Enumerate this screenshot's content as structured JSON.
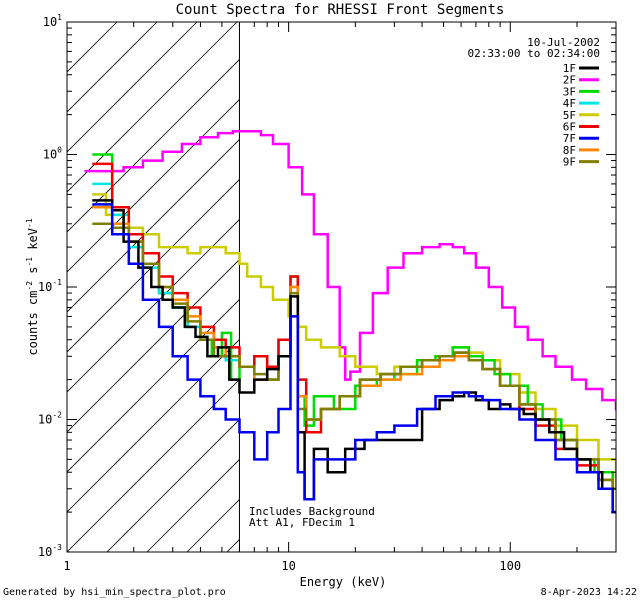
{
  "chart_data": {
    "type": "line",
    "title": "Count Spectra for RHESSI Front Segments",
    "xlabel": "Energy (keV)",
    "ylabel_main": "counts cm",
    "ylabel_exp1": "-2",
    "ylabel_mid": " s",
    "ylabel_exp2": "-1",
    "ylabel_end": " keV",
    "ylabel_exp3": "-1",
    "xscale": "log",
    "yscale": "log",
    "xlim": [
      1,
      300
    ],
    "ylim": [
      0.001,
      10
    ],
    "xticks": [
      {
        "value": 1,
        "label": "1"
      },
      {
        "value": 10,
        "label": "10"
      },
      {
        "value": 100,
        "label": "100"
      }
    ],
    "yticks": [
      {
        "value": 0.001,
        "base": "10",
        "exp": "-3"
      },
      {
        "value": 0.01,
        "base": "10",
        "exp": "-2"
      },
      {
        "value": 0.1,
        "base": "10",
        "exp": "-1"
      },
      {
        "value": 1,
        "base": "10",
        "exp": "0"
      },
      {
        "value": 10,
        "base": "10",
        "exp": "1"
      }
    ],
    "hatch_region_keV": [
      1,
      6
    ],
    "date": "10-Jul-2002",
    "time_range": "02:33:00 to 02:34:00",
    "annotation_line1": "Includes Background",
    "annotation_line2": "Att A1, FDecim 1",
    "legend_position": "top-right",
    "series": [
      {
        "name": "1F",
        "color": "#000000",
        "x": [
          1.3,
          1.6,
          1.8,
          2.1,
          2.4,
          2.7,
          3.0,
          3.4,
          3.8,
          4.3,
          4.8,
          5.4,
          6.0,
          7.0,
          8.0,
          9.0,
          10.2,
          11.0,
          11.8,
          13.0,
          15.0,
          18.0,
          22.0,
          27.0,
          33.0,
          40.0,
          48.0,
          55.0,
          62.0,
          70.0,
          80.0,
          90.0,
          100.0,
          115.0,
          130.0,
          150.0,
          175.0,
          200.0,
          230.0,
          260.0,
          290.0
        ],
        "y": [
          0.45,
          0.38,
          0.22,
          0.14,
          0.1,
          0.08,
          0.07,
          0.05,
          0.042,
          0.03,
          0.035,
          0.02,
          0.016,
          0.02,
          0.024,
          0.03,
          0.085,
          0.008,
          0.0025,
          0.006,
          0.004,
          0.006,
          0.007,
          0.007,
          0.007,
          0.012,
          0.014,
          0.015,
          0.016,
          0.014,
          0.012,
          0.013,
          0.012,
          0.011,
          0.01,
          0.008,
          0.006,
          0.005,
          0.004,
          0.003,
          0.002
        ]
      },
      {
        "name": "2F",
        "color": "#ff00ff",
        "x": [
          1.2,
          1.5,
          1.8,
          2.2,
          2.7,
          3.3,
          4.0,
          4.8,
          5.6,
          6.5,
          7.5,
          8.5,
          10.0,
          11.5,
          13.0,
          15.0,
          17.0,
          18.0,
          19.0,
          21.0,
          24.0,
          28.0,
          33.0,
          40.0,
          48.0,
          55.0,
          62.0,
          70.0,
          80.0,
          92.0,
          105.0,
          120.0,
          140.0,
          160.0,
          190.0,
          220.0,
          260.0,
          300.0
        ],
        "y": [
          0.75,
          0.75,
          0.8,
          0.9,
          1.05,
          1.2,
          1.35,
          1.45,
          1.5,
          1.5,
          1.4,
          1.2,
          0.8,
          0.5,
          0.25,
          0.1,
          0.035,
          0.02,
          0.023,
          0.045,
          0.09,
          0.14,
          0.18,
          0.2,
          0.21,
          0.2,
          0.18,
          0.14,
          0.1,
          0.07,
          0.05,
          0.04,
          0.03,
          0.025,
          0.02,
          0.017,
          0.014,
          0.012
        ]
      },
      {
        "name": "3F",
        "color": "#00dd00",
        "x": [
          1.3,
          1.6,
          1.9,
          2.2,
          2.6,
          3.0,
          3.5,
          4.0,
          4.5,
          5.0,
          5.5,
          6.0,
          7.0,
          8.0,
          9.0,
          10.2,
          11.0,
          11.8,
          13.0,
          16.0,
          20.0,
          25.0,
          30.0,
          38.0,
          46.0,
          55.0,
          65.0,
          75.0,
          85.0,
          100.0,
          120.0,
          140.0,
          170.0,
          200.0,
          240.0,
          290.0
        ],
        "y": [
          1.0,
          0.4,
          0.25,
          0.15,
          0.09,
          0.07,
          0.05,
          0.04,
          0.03,
          0.045,
          0.02,
          0.025,
          0.03,
          0.02,
          0.04,
          0.12,
          0.015,
          0.009,
          0.015,
          0.012,
          0.018,
          0.02,
          0.022,
          0.028,
          0.03,
          0.035,
          0.03,
          0.028,
          0.022,
          0.018,
          0.013,
          0.01,
          0.007,
          0.005,
          0.004,
          0.003
        ]
      },
      {
        "name": "4F",
        "color": "#00e5e5",
        "x": [
          1.3,
          1.6,
          1.9,
          2.2,
          2.6,
          3.0,
          3.5,
          4.0,
          4.6,
          5.2,
          6.0,
          7.0,
          8.0,
          9.0,
          10.2,
          11.0,
          12.0,
          14.0,
          17.0,
          21.0,
          26.0,
          32.0,
          40.0,
          48.0,
          56.0,
          65.0,
          75.0,
          90.0,
          110.0,
          130.0,
          160.0,
          200.0,
          250.0,
          290.0
        ],
        "y": [
          0.6,
          0.35,
          0.2,
          0.14,
          0.09,
          0.07,
          0.05,
          0.04,
          0.03,
          0.028,
          0.025,
          0.03,
          0.02,
          0.03,
          0.1,
          0.02,
          0.01,
          0.012,
          0.015,
          0.02,
          0.022,
          0.025,
          0.028,
          0.03,
          0.032,
          0.028,
          0.024,
          0.018,
          0.013,
          0.01,
          0.007,
          0.005,
          0.0035,
          0.003
        ]
      },
      {
        "name": "5F",
        "color": "#cccc00",
        "x": [
          1.3,
          1.5,
          1.8,
          2.2,
          2.6,
          3.0,
          3.5,
          4.0,
          4.6,
          5.2,
          6.0,
          6.5,
          7.5,
          8.5,
          10.0,
          11.0,
          12.0,
          14.0,
          17.0,
          20.0,
          25.0,
          30.0,
          38.0,
          46.0,
          55.0,
          65.0,
          75.0,
          90.0,
          110.0,
          130.0,
          160.0,
          200.0,
          250.0,
          300.0
        ],
        "y": [
          0.5,
          0.35,
          0.28,
          0.25,
          0.2,
          0.2,
          0.18,
          0.2,
          0.2,
          0.18,
          0.15,
          0.12,
          0.1,
          0.08,
          0.06,
          0.05,
          0.04,
          0.035,
          0.03,
          0.025,
          0.022,
          0.025,
          0.028,
          0.03,
          0.035,
          0.032,
          0.028,
          0.022,
          0.016,
          0.012,
          0.009,
          0.007,
          0.005,
          0.003
        ]
      },
      {
        "name": "6F",
        "color": "#ee0000",
        "x": [
          1.3,
          1.6,
          1.9,
          2.2,
          2.6,
          3.0,
          3.5,
          4.0,
          4.6,
          5.2,
          6.0,
          7.0,
          8.0,
          9.0,
          10.2,
          11.0,
          12.0,
          14.0,
          17.0,
          21.0,
          26.0,
          32.0,
          40.0,
          48.0,
          56.0,
          65.0,
          75.0,
          90.0,
          110.0,
          130.0,
          160.0,
          200.0,
          250.0,
          290.0
        ],
        "y": [
          0.85,
          0.4,
          0.25,
          0.18,
          0.12,
          0.09,
          0.07,
          0.05,
          0.04,
          0.035,
          0.025,
          0.03,
          0.025,
          0.04,
          0.12,
          0.02,
          0.008,
          0.012,
          0.015,
          0.02,
          0.022,
          0.025,
          0.028,
          0.03,
          0.032,
          0.028,
          0.024,
          0.018,
          0.012,
          0.009,
          0.006,
          0.0045,
          0.0035,
          0.003
        ]
      },
      {
        "name": "7F",
        "color": "#0000ee",
        "x": [
          1.3,
          1.6,
          1.9,
          2.2,
          2.6,
          3.0,
          3.5,
          4.0,
          4.6,
          5.2,
          6.0,
          7.0,
          8.0,
          9.0,
          10.2,
          11.0,
          11.8,
          13.0,
          16.0,
          20.0,
          25.0,
          30.0,
          38.0,
          46.0,
          55.0,
          65.0,
          75.0,
          90.0,
          110.0,
          130.0,
          160.0,
          200.0,
          250.0,
          290.0
        ],
        "y": [
          0.42,
          0.25,
          0.15,
          0.08,
          0.05,
          0.03,
          0.02,
          0.015,
          0.012,
          0.01,
          0.008,
          0.005,
          0.008,
          0.012,
          0.06,
          0.004,
          0.0025,
          0.005,
          0.005,
          0.007,
          0.008,
          0.009,
          0.012,
          0.015,
          0.016,
          0.015,
          0.014,
          0.012,
          0.01,
          0.007,
          0.005,
          0.004,
          0.003,
          0.002
        ]
      },
      {
        "name": "8F",
        "color": "#ff8800",
        "x": [
          1.3,
          1.6,
          1.9,
          2.2,
          2.6,
          3.0,
          3.5,
          4.0,
          4.6,
          5.2,
          6.0,
          7.0,
          8.0,
          9.0,
          10.2,
          11.0,
          12.0,
          14.0,
          17.0,
          21.0,
          26.0,
          32.0,
          40.0,
          48.0,
          56.0,
          65.0,
          75.0,
          90.0,
          110.0,
          130.0,
          160.0,
          200.0,
          250.0,
          290.0
        ],
        "y": [
          0.4,
          0.3,
          0.22,
          0.15,
          0.1,
          0.08,
          0.06,
          0.045,
          0.035,
          0.03,
          0.025,
          0.02,
          0.02,
          0.03,
          0.1,
          0.015,
          0.01,
          0.012,
          0.015,
          0.018,
          0.02,
          0.022,
          0.025,
          0.028,
          0.03,
          0.028,
          0.024,
          0.018,
          0.013,
          0.01,
          0.007,
          0.005,
          0.0035,
          0.003
        ]
      },
      {
        "name": "9F",
        "color": "#808000",
        "x": [
          1.3,
          1.6,
          1.9,
          2.2,
          2.6,
          3.0,
          3.5,
          4.0,
          4.6,
          5.2,
          6.0,
          7.0,
          8.0,
          9.0,
          10.2,
          11.0,
          12.0,
          14.0,
          17.0,
          21.0,
          26.0,
          32.0,
          40.0,
          48.0,
          56.0,
          65.0,
          75.0,
          90.0,
          110.0,
          130.0,
          160.0,
          200.0,
          250.0,
          290.0
        ],
        "y": [
          0.3,
          0.28,
          0.22,
          0.15,
          0.1,
          0.075,
          0.055,
          0.04,
          0.03,
          0.03,
          0.025,
          0.022,
          0.02,
          0.03,
          0.09,
          0.012,
          0.01,
          0.012,
          0.015,
          0.02,
          0.022,
          0.025,
          0.028,
          0.03,
          0.032,
          0.028,
          0.024,
          0.018,
          0.013,
          0.01,
          0.007,
          0.005,
          0.0035,
          0.003
        ]
      }
    ]
  },
  "footer": {
    "generated_by": "Generated by hsi_min_spectra_plot.pro",
    "timestamp": "8-Apr-2023 14:22"
  }
}
